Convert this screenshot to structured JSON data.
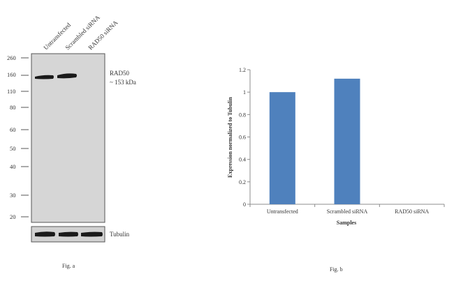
{
  "figure_a": {
    "lane_labels": [
      "Untransfected",
      "Scrambled siRNA",
      "RAD50 siRNA"
    ],
    "mw_markers": [
      "260",
      "160",
      "110",
      "80",
      "60",
      "50",
      "40",
      "30",
      "20"
    ],
    "band_label_line1": "RAD50",
    "band_label_line2": "~ 153 kDa",
    "loading_control_label": "Tubulin",
    "caption": "Fig. a"
  },
  "figure_b_caption": "Fig. b",
  "chart_data": {
    "type": "bar",
    "categories": [
      "Untransfected",
      "Scrambled siRNA",
      "RAD50 siRNA"
    ],
    "values": [
      1.0,
      1.12,
      0.0
    ],
    "title": "",
    "xlabel": "Samples",
    "ylabel": "Expression  normalized to Tubulin",
    "ylim": [
      0,
      1.2
    ],
    "yticks": [
      "0",
      "0.2",
      "0.4",
      "0.6",
      "0.8",
      "1",
      "1.2"
    ],
    "bar_color": "#4f81bd",
    "grid": false,
    "legend": "none"
  }
}
